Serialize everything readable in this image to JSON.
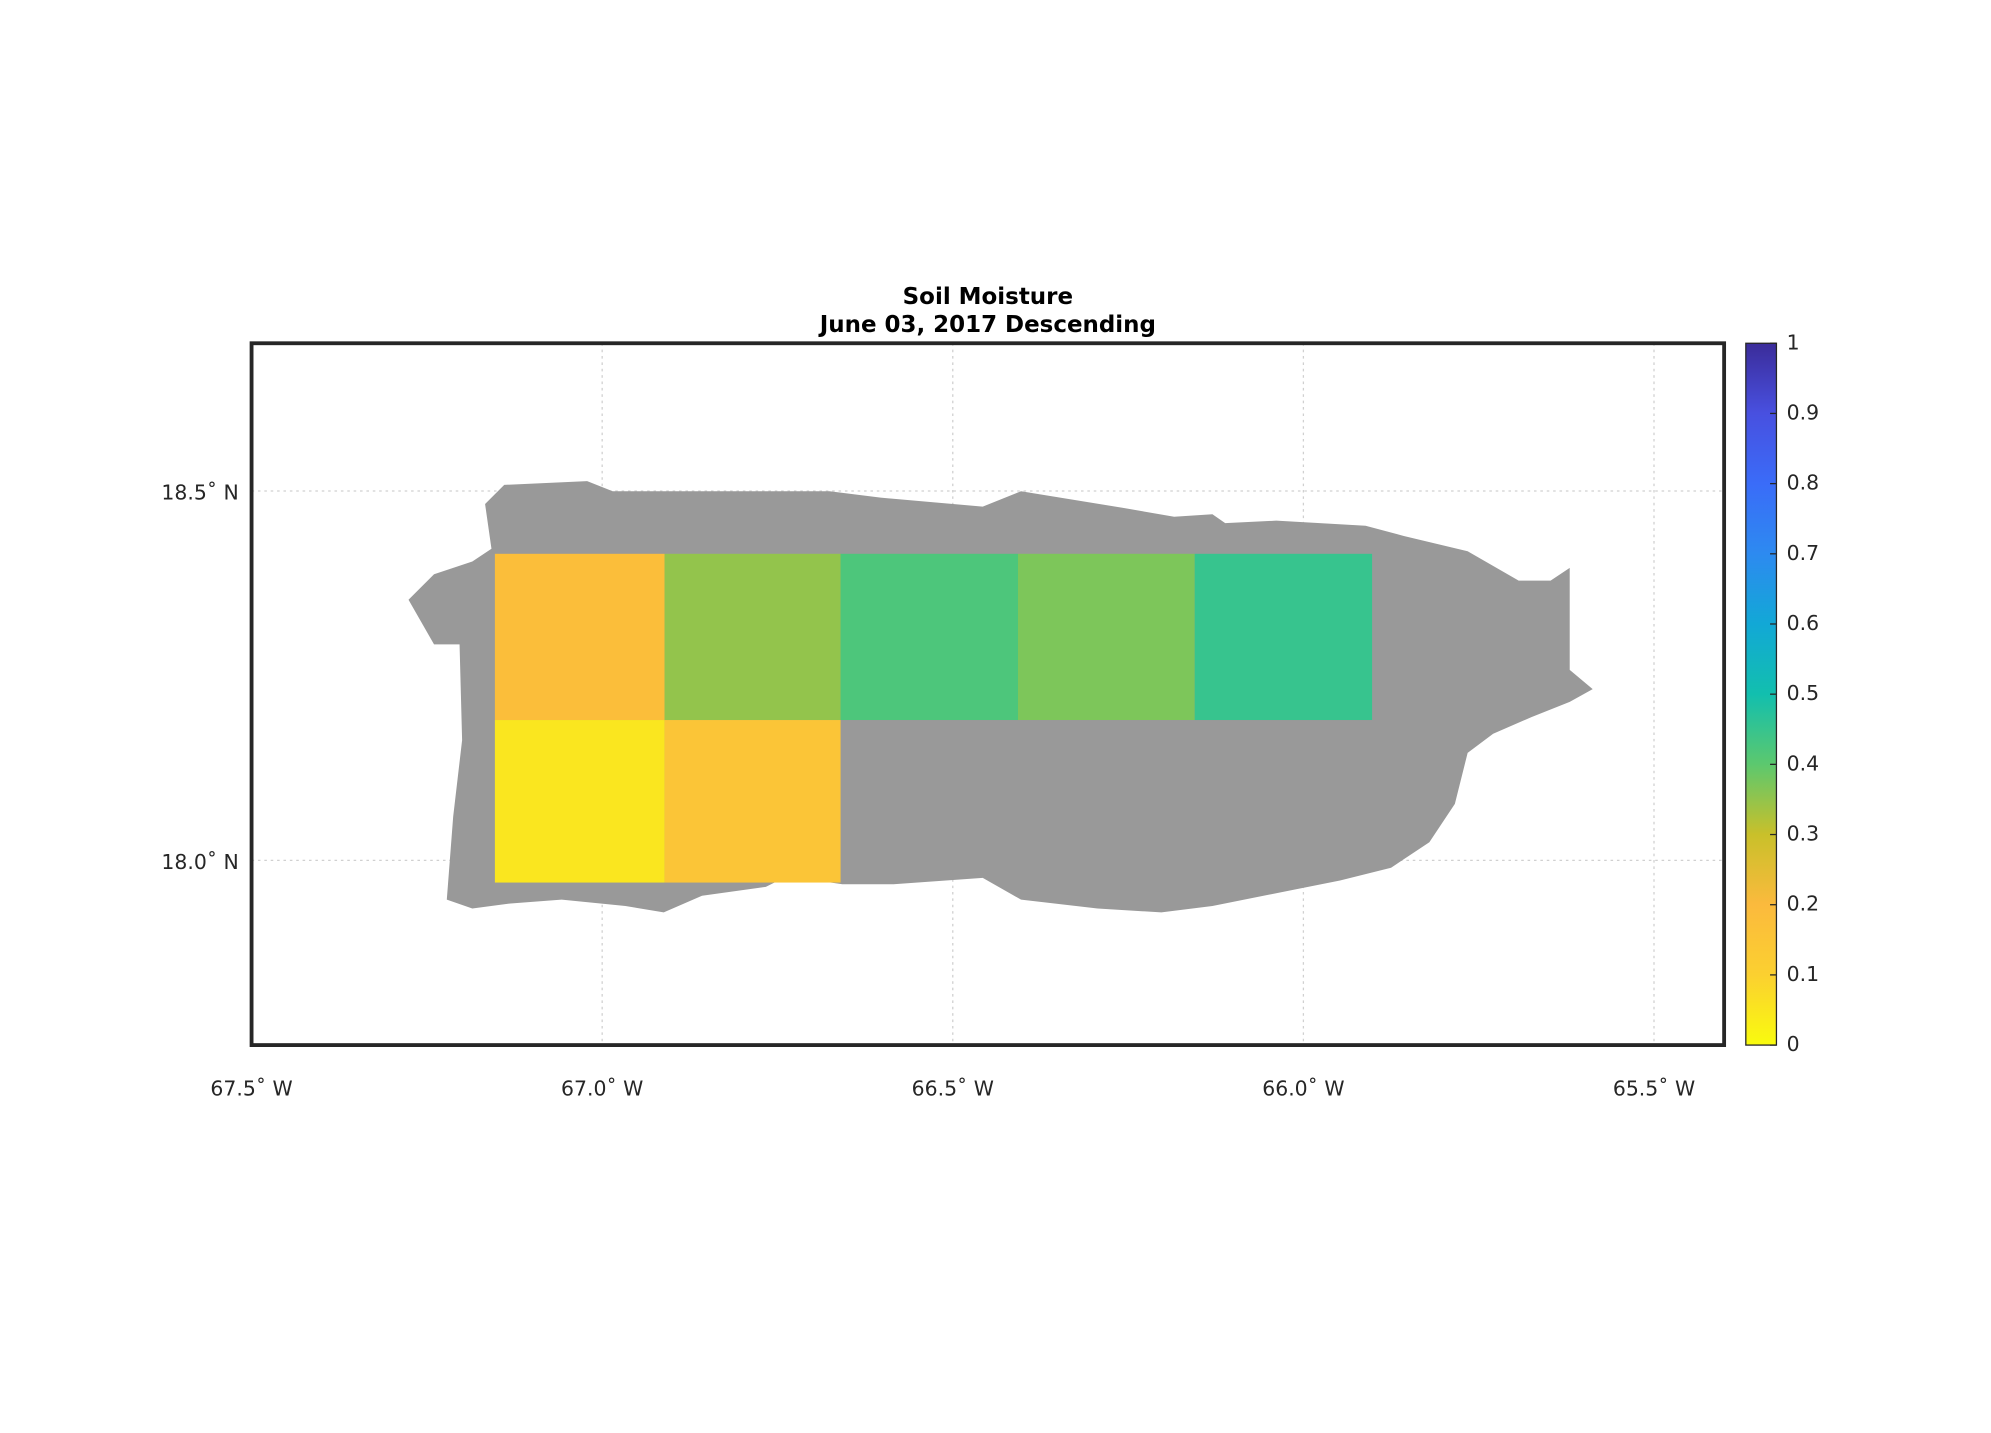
{
  "chart_data": {
    "type": "gridmap",
    "title": "Soil Moisture",
    "subtitle": "June 03, 2017 Descending",
    "xlim": [
      -67.5,
      -65.4
    ],
    "ylim": [
      17.75,
      18.7
    ],
    "xticks": [
      {
        "value": -67.5,
        "label": "67.5˚ W"
      },
      {
        "value": -67.0,
        "label": "67.0˚ W"
      },
      {
        "value": -66.5,
        "label": "66.5˚ W"
      },
      {
        "value": -66.0,
        "label": "66.0˚ W"
      },
      {
        "value": -65.5,
        "label": "65.5˚ W"
      }
    ],
    "yticks": [
      {
        "value": 18.0,
        "label": "18.0˚ N"
      },
      {
        "value": 18.5,
        "label": "18.5˚ N"
      }
    ],
    "grid": true,
    "clim": [
      0,
      1
    ],
    "cticks": [
      0,
      0.1,
      0.2,
      0.3,
      0.4,
      0.5,
      0.6,
      0.7,
      0.8,
      0.9,
      1
    ],
    "colormap": [
      "#f9fb0e",
      "#fbd030",
      "#fbba3d",
      "#c9c02a",
      "#5cc86e",
      "#12bfae",
      "#12a8d6",
      "#2d8af0",
      "#3a6cf8",
      "#4850e0",
      "#3b2c9a"
    ],
    "cells": [
      {
        "lon": [
          -67.153,
          -66.911
        ],
        "lat": [
          17.97,
          18.19
        ],
        "value": 0.05
      },
      {
        "lon": [
          -66.911,
          -66.66
        ],
        "lat": [
          17.97,
          18.19
        ],
        "value": 0.15
      },
      {
        "lon": [
          -67.153,
          -66.911
        ],
        "lat": [
          18.19,
          18.415
        ],
        "value": 0.18
      },
      {
        "lon": [
          -66.911,
          -66.66
        ],
        "lat": [
          18.19,
          18.415
        ],
        "value": 0.35
      },
      {
        "lon": [
          -66.66,
          -66.407
        ],
        "lat": [
          18.19,
          18.415
        ],
        "value": 0.42
      },
      {
        "lon": [
          -66.407,
          -66.155
        ],
        "lat": [
          18.19,
          18.415
        ],
        "value": 0.37
      },
      {
        "lon": [
          -66.155,
          -65.902
        ],
        "lat": [
          18.19,
          18.415
        ],
        "value": 0.45
      }
    ]
  }
}
